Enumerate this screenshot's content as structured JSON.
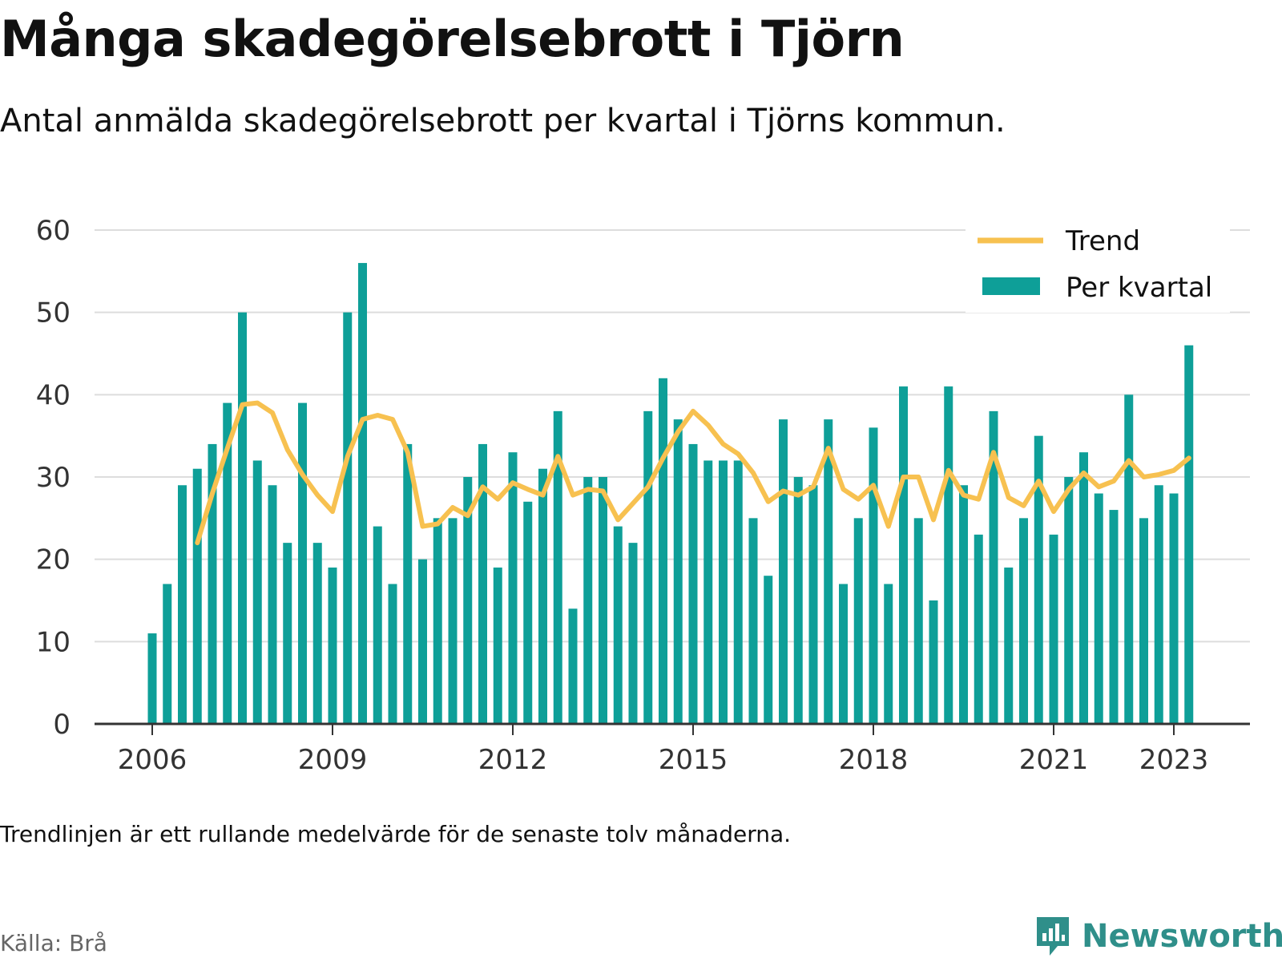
{
  "header": {
    "title": "Många skadegörelsebrott i Tjörn",
    "subtitle": "Antal anmälda skadegörelsebrott per kvartal i Tjörns kommun."
  },
  "footer": {
    "note": "Trendlinjen är ett rullande medelvärde för de senaste tolv månaderna.",
    "source": "Källa: Brå",
    "brand": "Newsworthy"
  },
  "colors": {
    "bars": "#0e9f98",
    "trend": "#f7c150",
    "grid": "#dddddd",
    "axis": "#333333",
    "brand": "#2f8f8a"
  },
  "chart_data": {
    "type": "bar",
    "title": "Många skadegörelsebrott i Tjörn",
    "subtitle": "Antal anmälda skadegörelsebrott per kvartal i Tjörns kommun.",
    "x_start": "2006-Q1",
    "x_ticks": [
      "2006",
      "2009",
      "2012",
      "2015",
      "2018",
      "2021",
      "2023"
    ],
    "ylim": [
      0,
      60
    ],
    "y_ticks": [
      0,
      10,
      20,
      30,
      40,
      50,
      60
    ],
    "grid": true,
    "legend_position": "top-right",
    "legend": [
      "Trend",
      "Per kvartal"
    ],
    "series": [
      {
        "name": "Per kvartal",
        "type": "bar",
        "values": [
          11,
          17,
          29,
          31,
          34,
          39,
          50,
          32,
          29,
          22,
          39,
          22,
          19,
          50,
          56,
          24,
          17,
          34,
          20,
          25,
          25,
          30,
          34,
          19,
          33,
          27,
          31,
          38,
          14,
          30,
          30,
          24,
          22,
          38,
          42,
          37,
          34,
          32,
          32,
          32,
          25,
          18,
          37,
          30,
          29,
          37,
          17,
          25,
          36,
          17,
          41,
          25,
          15,
          41,
          29,
          23,
          38,
          19,
          25,
          35,
          23,
          30,
          33,
          28,
          26,
          40,
          25,
          29,
          28,
          46
        ]
      },
      {
        "name": "Trend",
        "type": "line",
        "start_index": 3,
        "values": [
          22,
          28,
          33.5,
          38.8,
          39,
          37.8,
          33.3,
          30.3,
          27.8,
          25.8,
          32.5,
          37,
          37.5,
          37,
          33,
          24,
          24.3,
          26.3,
          25.3,
          28.8,
          27.3,
          29.3,
          28.5,
          27.8,
          32.5,
          27.8,
          28.5,
          28.3,
          24.8,
          26.8,
          28.8,
          32.3,
          35.5,
          38,
          36.3,
          34,
          32.8,
          30.5,
          27,
          28.3,
          27.8,
          28.8,
          33.5,
          28.5,
          27.3,
          29,
          24,
          30,
          30,
          24.8,
          30.8,
          27.8,
          27.3,
          33,
          27.5,
          26.5,
          29.5,
          25.8,
          28.5,
          30.5,
          28.8,
          29.5,
          32,
          30,
          30.3,
          30.8,
          32.3
        ]
      }
    ]
  }
}
